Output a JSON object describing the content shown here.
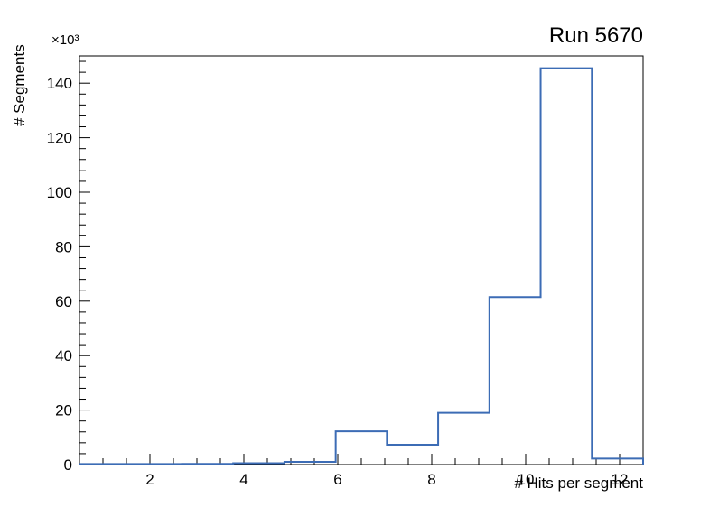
{
  "page": {
    "background_color": "#ffffff",
    "axis_color": "#000000"
  },
  "chart_data": {
    "type": "histogram-step",
    "title": "Run 5670",
    "xlabel": "# Hits per segment",
    "ylabel": "# Segments",
    "y_exponent_label": "×10³",
    "y_unit": 1000,
    "line_color": "#3c6cb5",
    "xlim": [
      0.5,
      12.5
    ],
    "ylim": [
      0,
      150
    ],
    "bin_edges": [
      0.5,
      1.591,
      2.682,
      3.773,
      4.864,
      5.955,
      7.045,
      8.136,
      9.227,
      10.318,
      11.409,
      12.5
    ],
    "counts_thousands": [
      0.2,
      0.2,
      0.25,
      0.5,
      1.0,
      12.2,
      7.3,
      19.0,
      61.5,
      145.5,
      2.2
    ],
    "x_major_ticks": [
      2,
      4,
      6,
      8,
      10,
      12
    ],
    "x_minor_step": 0.5,
    "y_major_ticks": [
      0,
      20,
      40,
      60,
      80,
      100,
      120,
      140
    ],
    "y_minor_step": 4,
    "grid": false,
    "legend": "none"
  }
}
